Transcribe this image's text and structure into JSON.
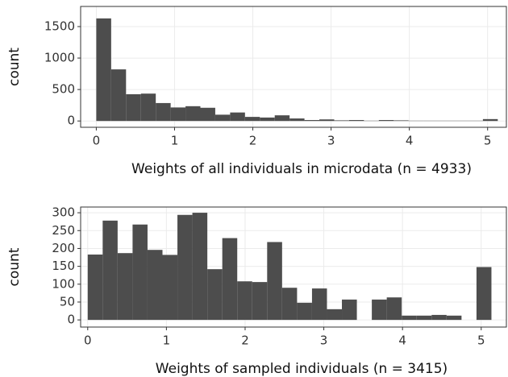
{
  "chart_data": [
    {
      "type": "histogram",
      "xlabel": "Weights of all individuals in microdata (n = 4933)",
      "ylabel": "count",
      "color": "#4d4d4d",
      "bins": [
        0,
        0.19,
        0.38,
        0.57,
        0.76,
        0.95,
        1.14,
        1.33,
        1.52,
        1.71,
        1.9,
        2.09,
        2.28,
        2.47,
        2.66,
        2.85,
        3.04,
        3.23,
        3.42,
        3.61,
        3.8,
        3.99,
        4.18,
        4.37,
        4.56,
        4.75,
        4.94,
        5.13
      ],
      "values": [
        1630,
        820,
        425,
        435,
        285,
        215,
        235,
        210,
        100,
        135,
        65,
        55,
        90,
        40,
        15,
        25,
        10,
        15,
        5,
        15,
        10,
        5,
        5,
        5,
        5,
        5,
        30
      ],
      "xlim": [
        -0.2,
        5.24
      ],
      "ylim": [
        -100,
        1820
      ],
      "xticks": [
        0,
        1,
        2,
        3,
        4,
        5
      ],
      "yticks": [
        0,
        500,
        1000,
        1500
      ],
      "grid": true
    },
    {
      "type": "histogram",
      "xlabel": "Weights of sampled individuals (n = 3415)",
      "ylabel": "count",
      "color": "#4d4d4d",
      "bins": [
        0,
        0.19,
        0.38,
        0.57,
        0.76,
        0.95,
        1.14,
        1.33,
        1.52,
        1.71,
        1.9,
        2.09,
        2.28,
        2.47,
        2.66,
        2.85,
        3.04,
        3.23,
        3.42,
        3.61,
        3.8,
        3.99,
        4.18,
        4.37,
        4.56,
        4.75,
        4.94,
        5.13
      ],
      "values": [
        183,
        278,
        187,
        267,
        196,
        182,
        294,
        300,
        142,
        229,
        108,
        106,
        218,
        90,
        48,
        88,
        30,
        57,
        0,
        57,
        63,
        12,
        12,
        14,
        12,
        0,
        148
      ],
      "xlim": [
        -0.09,
        5.32
      ],
      "ylim": [
        -20,
        316
      ],
      "xticks": [
        0,
        1,
        2,
        3,
        4,
        5
      ],
      "yticks": [
        0,
        50,
        100,
        150,
        200,
        250,
        300
      ],
      "grid": true
    }
  ]
}
